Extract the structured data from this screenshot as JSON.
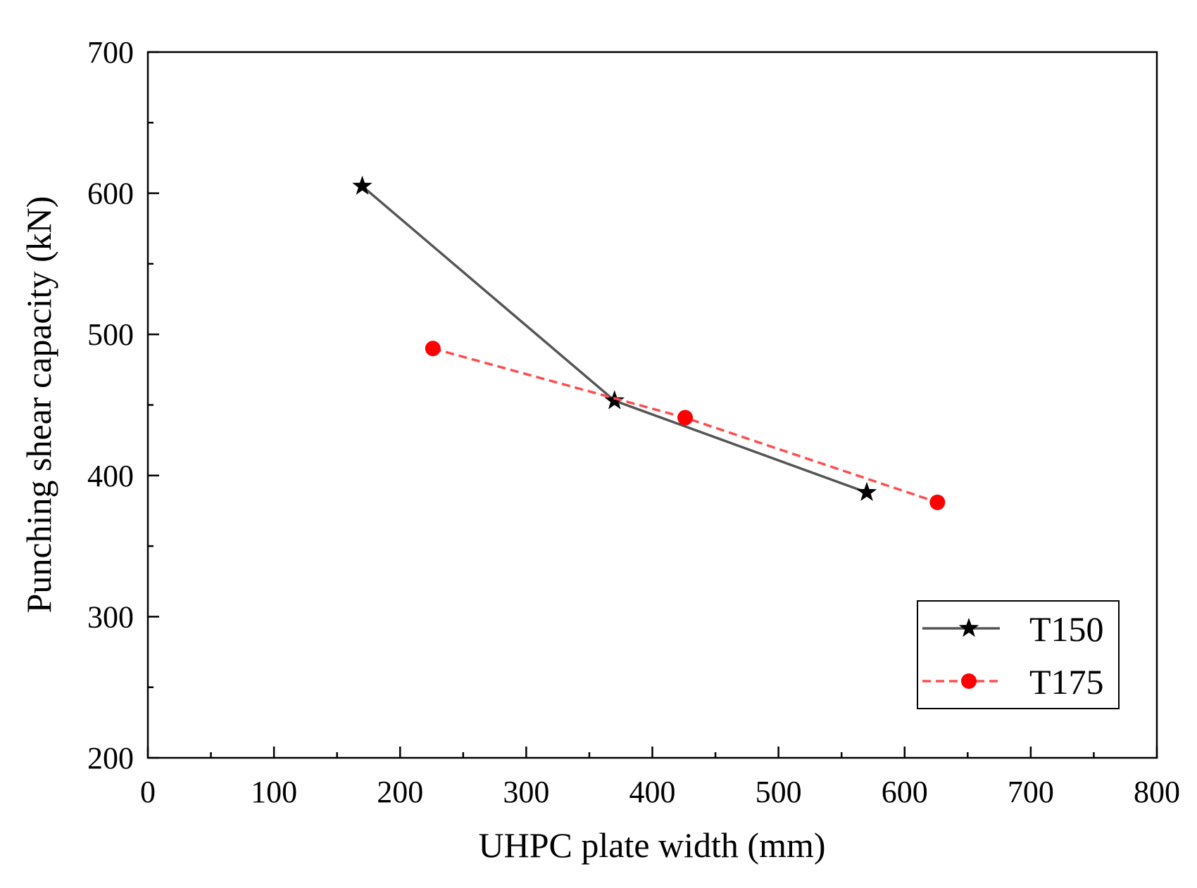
{
  "chart_data": {
    "type": "line",
    "title": "",
    "xlabel": "UHPC plate width (mm)",
    "ylabel": "Punching shear capacity  (kN)",
    "xlim": [
      0,
      800
    ],
    "ylim": [
      200,
      700
    ],
    "xticks": [
      0,
      100,
      200,
      300,
      400,
      500,
      600,
      700,
      800
    ],
    "yticks": [
      200,
      300,
      400,
      500,
      600,
      700
    ],
    "legend_position": "bottom-right",
    "series": [
      {
        "name": "T150",
        "marker": "star",
        "line_style": "solid",
        "color": "#555555",
        "marker_color": "#000000",
        "x": [
          170,
          370,
          570
        ],
        "y": [
          605,
          453,
          388
        ]
      },
      {
        "name": "T175",
        "marker": "circle",
        "line_style": "dashed",
        "color": "#ff4d4d",
        "marker_color": "#ff0000",
        "x": [
          226,
          426,
          626
        ],
        "y": [
          490,
          441,
          381
        ]
      }
    ]
  }
}
